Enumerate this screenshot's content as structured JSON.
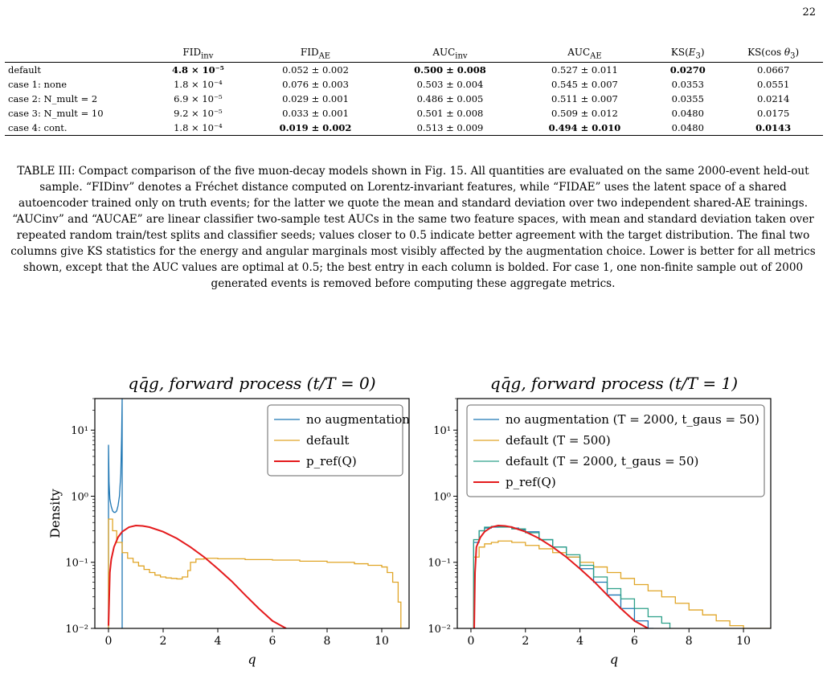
{
  "page_number": "22",
  "table": {
    "columns": [
      "",
      "FID_inv",
      "FID_AE",
      "AUC_inv",
      "AUC_AE",
      "KS(E3)",
      "KS(cos θ3)"
    ],
    "rows": [
      {
        "label": "default",
        "cells": [
          "4.8 × 10⁻⁵",
          "0.052 ± 0.002",
          "0.500 ± 0.008",
          "0.527 ± 0.011",
          "0.0270",
          "0.0667"
        ],
        "bold": [
          0,
          2,
          4
        ]
      },
      {
        "label": "case 1: none",
        "cells": [
          "1.8 × 10⁻⁴",
          "0.076 ± 0.003",
          "0.503 ± 0.004",
          "0.545 ± 0.007",
          "0.0353",
          "0.0551"
        ],
        "bold": []
      },
      {
        "label": "case 2: N_mult = 2",
        "cells": [
          "6.9 × 10⁻⁵",
          "0.029 ± 0.001",
          "0.486 ± 0.005",
          "0.511 ± 0.007",
          "0.0355",
          "0.0214"
        ],
        "bold": []
      },
      {
        "label": "case 3: N_mult = 10",
        "cells": [
          "9.2 × 10⁻⁵",
          "0.033 ± 0.001",
          "0.501 ± 0.008",
          "0.509 ± 0.012",
          "0.0480",
          "0.0175"
        ],
        "bold": []
      },
      {
        "label": "case 4: cont.",
        "cells": [
          "1.8 × 10⁻⁴",
          "0.019 ± 0.002",
          "0.513 ± 0.009",
          "0.494 ± 0.010",
          "0.0480",
          "0.0143"
        ],
        "bold": [
          1,
          3,
          5
        ]
      }
    ]
  },
  "caption": "TABLE III: Compact comparison of the five muon-decay models shown in Fig. 15. All quantities are evaluated on the same 2000-event held-out sample. “FIDinv” denotes a Fréchet distance computed on Lorentz-invariant features, while “FIDAE” uses the latent space of a shared autoencoder trained only on truth events; for the latter we quote the mean and standard deviation over two independent shared-AE trainings. “AUCinv” and “AUCAE” are linear classifier two-sample test AUCs in the same two feature spaces, with mean and standard deviation taken over repeated random train/test splits and classifier seeds; values closer to 0.5 indicate better agreement with the target distribution. The final two columns give KS statistics for the energy and angular marginals most visibly affected by the augmentation choice. Lower is better for all metrics shown, except that the AUC values are optimal at 0.5; the best entry in each column is bolded. For case 1, one non-finite sample out of 2000 generated events is removed before computing these aggregate metrics.",
  "chart_data": [
    {
      "type": "line",
      "title": "qq̄g, forward process (t/T = 0)",
      "xlabel": "q",
      "ylabel": "Density",
      "xlim": [
        -0.5,
        11
      ],
      "ylim": [
        0.01,
        30
      ],
      "yscale": "log",
      "xticks": [
        0,
        2,
        4,
        6,
        8,
        10
      ],
      "yticks": [
        "10⁻²",
        "10⁻¹",
        "10⁰",
        "10¹"
      ],
      "legend_position": "top-right",
      "series": [
        {
          "name": "no augmentation",
          "color": "#1f77b4",
          "style": "spiky",
          "x": [
            0.0,
            0.02,
            0.05,
            0.1,
            0.15,
            0.2,
            0.25,
            0.3,
            0.35,
            0.4,
            0.45,
            0.48,
            0.5
          ],
          "y": [
            6.0,
            1.6,
            0.9,
            0.7,
            0.6,
            0.57,
            0.57,
            0.6,
            0.72,
            1.0,
            2.2,
            8.0,
            30.0
          ]
        },
        {
          "name": "default",
          "color": "#e0a526",
          "style": "step",
          "x": [
            0.0,
            0.15,
            0.3,
            0.5,
            0.7,
            0.9,
            1.1,
            1.3,
            1.5,
            1.7,
            1.9,
            2.1,
            2.3,
            2.5,
            2.7,
            2.9,
            3.0,
            3.2,
            3.5,
            4,
            5,
            6,
            7,
            8,
            9,
            9.5,
            10,
            10.2,
            10.4,
            10.6,
            10.7
          ],
          "y": [
            0.45,
            0.3,
            0.2,
            0.14,
            0.115,
            0.1,
            0.088,
            0.078,
            0.07,
            0.064,
            0.06,
            0.058,
            0.057,
            0.056,
            0.06,
            0.075,
            0.1,
            0.112,
            0.115,
            0.113,
            0.11,
            0.108,
            0.104,
            0.1,
            0.095,
            0.09,
            0.085,
            0.07,
            0.05,
            0.025,
            0.01
          ]
        },
        {
          "name": "p_ref(Q)",
          "color": "#e41a1c",
          "style": "line",
          "x": [
            0.0,
            0.05,
            0.1,
            0.2,
            0.35,
            0.5,
            0.75,
            1.0,
            1.25,
            1.5,
            2.0,
            2.5,
            3.0,
            3.5,
            4.0,
            4.5,
            5.0,
            5.5,
            6.0,
            6.5
          ],
          "y": [
            0.011,
            0.07,
            0.11,
            0.17,
            0.24,
            0.29,
            0.34,
            0.36,
            0.355,
            0.34,
            0.29,
            0.23,
            0.17,
            0.12,
            0.08,
            0.052,
            0.032,
            0.02,
            0.013,
            0.008
          ]
        }
      ]
    },
    {
      "type": "line",
      "title": "qq̄g, forward process (t/T = 1)",
      "xlabel": "q",
      "ylabel": "",
      "xlim": [
        -0.5,
        11
      ],
      "ylim": [
        0.01,
        30
      ],
      "yscale": "log",
      "xticks": [
        0,
        2,
        4,
        6,
        8,
        10
      ],
      "yticks": [
        "10⁻²",
        "10⁻¹",
        "10⁰",
        "10¹"
      ],
      "legend_position": "top-right",
      "series": [
        {
          "name": "no augmentation (T = 2000, t_gaus = 50)",
          "color": "#1f77b4",
          "style": "step",
          "x": [
            0.1,
            0.3,
            0.5,
            0.75,
            1.0,
            1.25,
            1.5,
            1.75,
            2.0,
            2.5,
            3.0,
            3.5,
            4.0,
            4.5,
            5.0,
            5.5,
            6.0,
            6.5,
            6.7
          ],
          "y": [
            0.2,
            0.3,
            0.33,
            0.34,
            0.35,
            0.345,
            0.33,
            0.31,
            0.29,
            0.22,
            0.17,
            0.12,
            0.08,
            0.05,
            0.032,
            0.02,
            0.013,
            0.01,
            0.008
          ]
        },
        {
          "name": "default (T = 500)",
          "color": "#e0a526",
          "style": "step",
          "x": [
            0.1,
            0.3,
            0.5,
            0.75,
            1.0,
            1.5,
            2.0,
            2.5,
            3.0,
            3.5,
            4.0,
            4.5,
            5.0,
            5.5,
            6.0,
            6.5,
            7.0,
            7.5,
            8.0,
            8.5,
            9.0,
            9.5,
            10.0,
            10.5,
            11.0
          ],
          "y": [
            0.12,
            0.17,
            0.19,
            0.2,
            0.21,
            0.2,
            0.18,
            0.16,
            0.14,
            0.12,
            0.1,
            0.085,
            0.07,
            0.057,
            0.046,
            0.037,
            0.03,
            0.024,
            0.019,
            0.016,
            0.013,
            0.011,
            0.01,
            0.009,
            0.008
          ]
        },
        {
          "name": "default (T = 2000, t_gaus = 50)",
          "color": "#2ca089",
          "style": "step",
          "x": [
            0.1,
            0.3,
            0.5,
            0.75,
            1.0,
            1.5,
            2.0,
            2.5,
            3.0,
            3.5,
            4.0,
            4.5,
            5.0,
            5.5,
            6.0,
            6.5,
            7.0,
            7.3
          ],
          "y": [
            0.22,
            0.3,
            0.34,
            0.35,
            0.34,
            0.32,
            0.28,
            0.22,
            0.17,
            0.13,
            0.09,
            0.06,
            0.04,
            0.028,
            0.02,
            0.015,
            0.012,
            0.008
          ]
        },
        {
          "name": "p_ref(Q)",
          "color": "#e41a1c",
          "style": "line",
          "x": [
            0.12,
            0.15,
            0.2,
            0.35,
            0.5,
            0.75,
            1.0,
            1.25,
            1.5,
            2.0,
            2.5,
            3.0,
            3.5,
            4.0,
            4.5,
            5.0,
            5.5,
            6.0,
            6.5
          ],
          "y": [
            0.01,
            0.07,
            0.17,
            0.24,
            0.29,
            0.34,
            0.36,
            0.355,
            0.34,
            0.29,
            0.23,
            0.17,
            0.12,
            0.08,
            0.052,
            0.032,
            0.02,
            0.013,
            0.008
          ]
        }
      ]
    }
  ]
}
